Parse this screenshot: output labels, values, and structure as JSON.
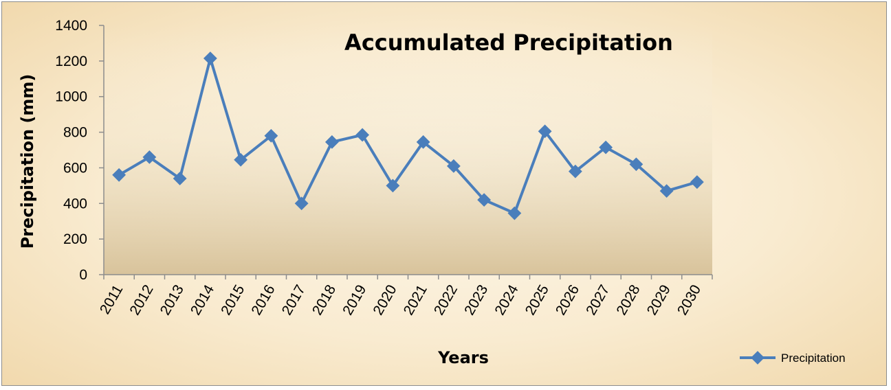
{
  "chart_data": {
    "type": "line",
    "title": "Accumulated Precipitation",
    "xlabel": "Years",
    "ylabel": "Precipitation (mm)",
    "categories": [
      "2011",
      "2012",
      "2013",
      "2014",
      "2015",
      "2016",
      "2017",
      "2018",
      "2019",
      "2020",
      "2021",
      "2022",
      "2023",
      "2024",
      "2025",
      "2026",
      "2027",
      "2028",
      "2029",
      "2030"
    ],
    "series": [
      {
        "name": "Precipitation",
        "values": [
          560,
          660,
          540,
          1215,
          645,
          780,
          400,
          745,
          785,
          500,
          745,
          610,
          420,
          345,
          805,
          580,
          715,
          620,
          470,
          520
        ]
      }
    ],
    "ylim": [
      0,
      1400
    ],
    "yticks": [
      0,
      200,
      400,
      600,
      800,
      1000,
      1200,
      1400
    ],
    "grid": false,
    "legend_position": "bottom-right",
    "colors": {
      "series": "#4a7ebb",
      "axis": "#8c8c8c",
      "plot_gradient_top": "#fbf3e3",
      "plot_gradient_bottom": "#d8c39b"
    }
  }
}
